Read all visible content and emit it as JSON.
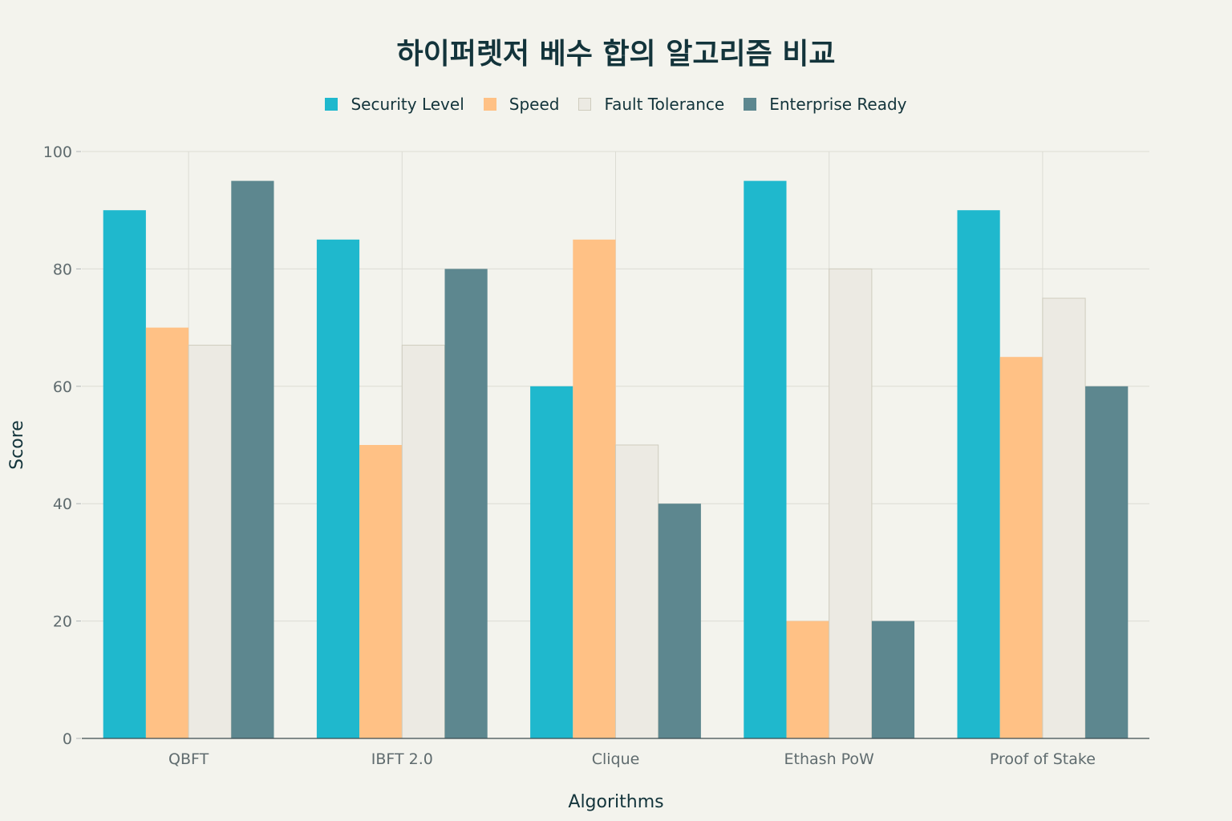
{
  "chart_data": {
    "type": "bar",
    "title": "하이퍼렛저 베수 합의 알고리즘 비교",
    "xlabel": "Algorithms",
    "ylabel": "Score",
    "ylim": [
      0,
      100
    ],
    "yticks": [
      0,
      20,
      40,
      60,
      80,
      100
    ],
    "grid": true,
    "legend_position": "top-center",
    "categories": [
      "QBFT",
      "IBFT 2.0",
      "Clique",
      "Ethash PoW",
      "Proof of Stake"
    ],
    "series": [
      {
        "name": "Security Level",
        "color": "#1fb8cd",
        "values": [
          90,
          85,
          60,
          95,
          90
        ]
      },
      {
        "name": "Speed",
        "color": "#ffc185",
        "values": [
          70,
          50,
          85,
          20,
          65
        ]
      },
      {
        "name": "Fault Tolerance",
        "color": "#eceae3",
        "values": [
          67,
          67,
          50,
          80,
          75
        ]
      },
      {
        "name": "Enterprise Ready",
        "color": "#5d878f",
        "values": [
          95,
          80,
          40,
          20,
          60
        ]
      }
    ]
  }
}
